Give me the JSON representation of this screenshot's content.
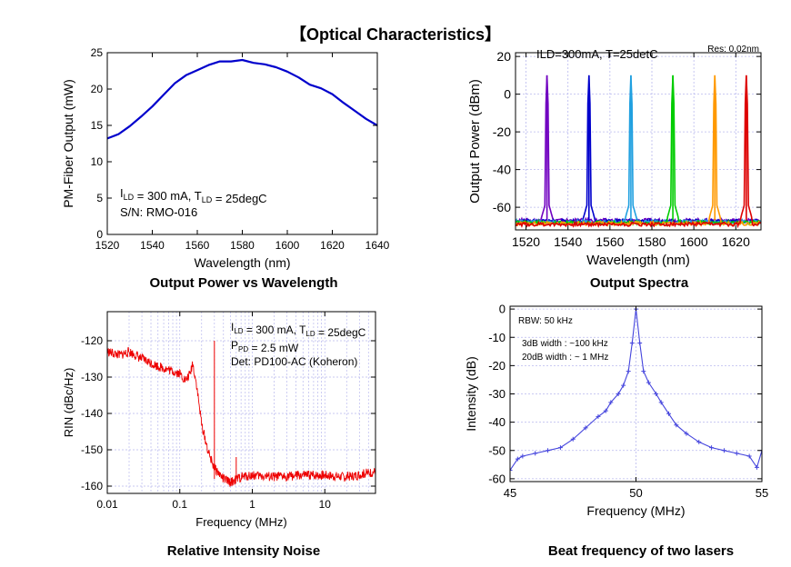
{
  "page_title": "【Optical Characteristics】",
  "captions": [
    "Output Power vs Wavelength",
    "Output Spectra",
    "Relative Intensity Noise",
    "Beat frequency of two lasers"
  ],
  "chart_data": [
    {
      "type": "line",
      "xlabel": "Wavelength (nm)",
      "ylabel": "PM-Fiber Output (mW)",
      "xlim": [
        1520,
        1640
      ],
      "ylim": [
        0,
        25
      ],
      "xticks": [
        1520,
        1540,
        1560,
        1580,
        1600,
        1620,
        1640
      ],
      "yticks": [
        0,
        5,
        10,
        15,
        20,
        25
      ],
      "grid": false,
      "annotations": [
        "ILD = 300 mA, TLD = 25degC",
        "S/N: RMO-016"
      ],
      "series": [
        {
          "color": "#0000cc",
          "x": [
            1520,
            1525,
            1530,
            1535,
            1540,
            1545,
            1550,
            1555,
            1560,
            1565,
            1570,
            1575,
            1580,
            1585,
            1590,
            1595,
            1600,
            1605,
            1610,
            1615,
            1620,
            1625,
            1630,
            1635,
            1640
          ],
          "y": [
            13.2,
            13.8,
            14.9,
            16.2,
            17.6,
            19.2,
            20.8,
            21.9,
            22.6,
            23.3,
            23.8,
            23.8,
            24.0,
            23.6,
            23.4,
            23.0,
            22.4,
            21.6,
            20.6,
            20.1,
            19.3,
            18.1,
            17.0,
            15.9,
            15.0
          ]
        }
      ]
    },
    {
      "type": "line",
      "xlabel": "Wavelength (nm)",
      "ylabel": "Output Power (dBm)",
      "xlim": [
        1515,
        1632
      ],
      "ylim": [
        -72,
        22
      ],
      "xticks": [
        1520,
        1540,
        1560,
        1580,
        1600,
        1620
      ],
      "yticks": [
        -60,
        -40,
        -20,
        0,
        20
      ],
      "grid": true,
      "annotations": [
        "ILD=300mA, T=25detC",
        "Res: 0.02nm"
      ],
      "series": [
        {
          "color": "#7000c0",
          "peak_x": 1530,
          "peak_y": 10
        },
        {
          "color": "#0000cc",
          "peak_x": 1550,
          "peak_y": 10
        },
        {
          "color": "#20a0e0",
          "peak_x": 1570,
          "peak_y": 10
        },
        {
          "color": "#00cc00",
          "peak_x": 1590,
          "peak_y": 10
        },
        {
          "color": "#ff9900",
          "peak_x": 1610,
          "peak_y": 10
        },
        {
          "color": "#dd0000",
          "peak_x": 1625,
          "peak_y": 10
        }
      ],
      "noise_floor": -67
    },
    {
      "type": "line",
      "xlabel": "Frequency (MHz)",
      "ylabel": "RIN (dBc/Hz)",
      "xscale": "log",
      "xlim": [
        0.01,
        50
      ],
      "ylim": [
        -162,
        -112
      ],
      "xticks": [
        0.01,
        0.1,
        1,
        10
      ],
      "xticklabels": [
        "0.01",
        "0.1",
        "1",
        "10"
      ],
      "yticks": [
        -160,
        -150,
        -140,
        -130,
        -120
      ],
      "grid": true,
      "annotations": [
        "ILD = 300 mA, TLD = 25degC",
        "PPD = 2.5 mW",
        "Det: PD100-AC (Koheron)"
      ],
      "series": [
        {
          "color": "#ee0000",
          "x": [
            0.01,
            0.015,
            0.02,
            0.03,
            0.05,
            0.07,
            0.1,
            0.12,
            0.14,
            0.15,
            0.17,
            0.2,
            0.25,
            0.3,
            0.4,
            0.5,
            0.7,
            1,
            2,
            5,
            10,
            20,
            50
          ],
          "y": [
            -123,
            -124,
            -123,
            -125,
            -127,
            -128,
            -129,
            -131,
            -129,
            -126,
            -132,
            -143,
            -151,
            -155,
            -158,
            -159,
            -157.5,
            -157,
            -157.5,
            -157,
            -157,
            -157.5,
            -156
          ]
        }
      ],
      "spikes": [
        {
          "x": 0.3,
          "y": -120
        },
        {
          "x": 0.6,
          "y": -152
        }
      ]
    },
    {
      "type": "line",
      "xlabel": "Frequency (MHz)",
      "ylabel": "Intensity (dB)",
      "xlim": [
        45,
        55
      ],
      "ylim": [
        -61,
        1
      ],
      "xticks": [
        45,
        50,
        55
      ],
      "yticks": [
        -60,
        -50,
        -40,
        -30,
        -20,
        -10,
        0
      ],
      "grid": true,
      "annotations": [
        "RBW: 50 kHz",
        "3dB width : ~100 kHz",
        "20dB width : ~ 1 MHz"
      ],
      "series": [
        {
          "color": "#4444dd",
          "x": [
            45,
            45.3,
            45.5,
            46,
            46.5,
            47,
            47.5,
            48,
            48.5,
            48.8,
            49,
            49.3,
            49.5,
            49.7,
            49.85,
            50,
            50.15,
            50.3,
            50.5,
            50.8,
            51,
            51.3,
            51.6,
            52,
            52.5,
            53,
            53.5,
            54,
            54.5,
            54.8,
            55
          ],
          "y": [
            -57,
            -53,
            -52,
            -51,
            -50,
            -49,
            -46,
            -42,
            -38,
            -36,
            -33,
            -30,
            -27,
            -22,
            -12,
            0,
            -12,
            -22,
            -26,
            -30,
            -33,
            -37,
            -41,
            -44,
            -47,
            -49,
            -50,
            -51,
            -52,
            -56,
            -50
          ]
        }
      ]
    }
  ]
}
